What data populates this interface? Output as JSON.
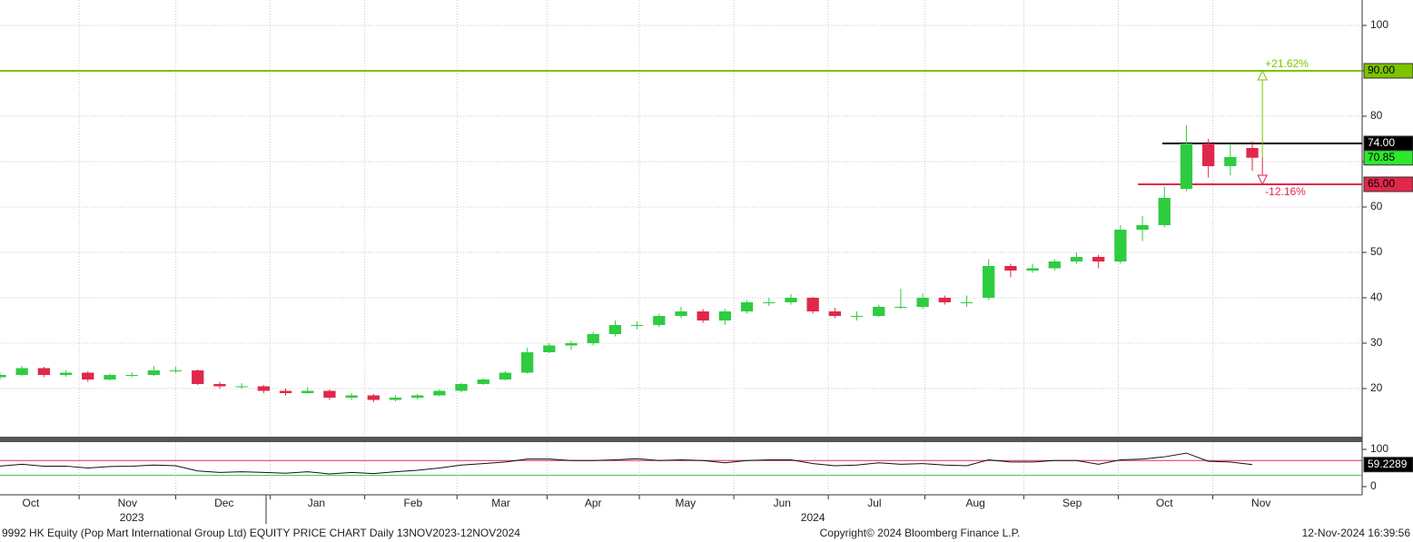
{
  "chart_data": {
    "type": "candlestick",
    "x": [
      0,
      5,
      10,
      15,
      20,
      25,
      30,
      35,
      40,
      45,
      50,
      55,
      60,
      65,
      70,
      75,
      80,
      85,
      90,
      95,
      100,
      105,
      110,
      115,
      120,
      125,
      130,
      135,
      140,
      145,
      150,
      155,
      160,
      165,
      170,
      175,
      180,
      185,
      190,
      195,
      200,
      205,
      210,
      215,
      220,
      225,
      230,
      235,
      240,
      245,
      250,
      255,
      260,
      265,
      270,
      275,
      280,
      285
    ],
    "open": [
      22.5,
      23,
      24.5,
      23,
      23.5,
      22,
      23,
      23,
      24,
      24,
      21,
      20.5,
      20.5,
      19.5,
      19,
      19.5,
      18,
      18.5,
      17.5,
      18,
      18.5,
      19.5,
      21,
      22,
      23.5,
      28,
      29.5,
      30,
      32,
      34,
      34,
      36,
      37,
      35,
      37,
      39,
      39,
      40,
      37,
      36,
      36,
      38,
      38,
      40,
      39,
      40,
      47,
      46,
      46.5,
      48,
      49,
      48,
      55,
      56,
      64,
      74,
      69,
      73
    ],
    "high": [
      23.5,
      25,
      24.8,
      24,
      23.8,
      23.3,
      23.6,
      25,
      24.8,
      24.2,
      21.5,
      21.2,
      20.8,
      20,
      20.3,
      19.8,
      19,
      18.8,
      18.5,
      18.8,
      19.8,
      21.3,
      22.3,
      23.8,
      29,
      30,
      30.5,
      32.5,
      35,
      34.8,
      36.5,
      38,
      37.5,
      37.5,
      39.5,
      40,
      40.8,
      40.2,
      37.8,
      37,
      38.5,
      42,
      41,
      40.5,
      40.5,
      48.5,
      47.5,
      47.5,
      48.5,
      50,
      49.5,
      56,
      58,
      64.5,
      78,
      75,
      74,
      74.5
    ],
    "low": [
      22,
      22.8,
      22.5,
      22.6,
      21.5,
      21.8,
      22.5,
      22.8,
      23.5,
      20.8,
      20,
      20,
      19,
      18.5,
      18.8,
      17.5,
      17.5,
      17,
      17.2,
      17.6,
      18.3,
      19.2,
      20.8,
      21.8,
      23.3,
      27.8,
      28.5,
      29.5,
      31.5,
      33,
      33.5,
      35.5,
      34.5,
      34,
      36.5,
      38.2,
      38.5,
      36.5,
      35.5,
      35,
      35.8,
      37.5,
      37.5,
      38.5,
      38,
      39.5,
      44.5,
      45.5,
      46,
      47.5,
      46.5,
      47.5,
      52.5,
      55.5,
      63.5,
      66.5,
      67,
      68
    ],
    "close": [
      23,
      24.5,
      23,
      23.5,
      22,
      23,
      23,
      24,
      24,
      21,
      20.5,
      20.5,
      19.5,
      19,
      19.5,
      18,
      18.5,
      17.5,
      18,
      18.5,
      19.5,
      21,
      22,
      23.5,
      28,
      29.5,
      30,
      32,
      34,
      34,
      36,
      37,
      35,
      37,
      39,
      39,
      40,
      37,
      36,
      36,
      38,
      38,
      40,
      39,
      39,
      47,
      46,
      46.5,
      48,
      49,
      48,
      55,
      56,
      62,
      74,
      69,
      71,
      70.85
    ],
    "up_color": "#2ecc40",
    "down_color": "#e0284a",
    "xlim": [
      0,
      310
    ],
    "xticks": [
      {
        "value": 7,
        "label": "Oct"
      },
      {
        "value": 29,
        "label": "Nov"
      },
      {
        "value": 51,
        "label": "Dec"
      },
      {
        "value": 72,
        "label": "Jan"
      },
      {
        "value": 94,
        "label": "Feb"
      },
      {
        "value": 114,
        "label": "Mar"
      },
      {
        "value": 135,
        "label": "Apr"
      },
      {
        "value": 156,
        "label": "May"
      },
      {
        "value": 178,
        "label": "Jun"
      },
      {
        "value": 199,
        "label": "Jul"
      },
      {
        "value": 222,
        "label": "Aug"
      },
      {
        "value": 244,
        "label": "Sep"
      },
      {
        "value": 265,
        "label": "Oct"
      },
      {
        "value": 287,
        "label": "Nov"
      }
    ],
    "years": [
      {
        "value": 30,
        "label": "2023"
      },
      {
        "value": 185,
        "label": "2024"
      }
    ],
    "ylim": [
      9.6,
      105.6
    ],
    "yticks": [
      20,
      30,
      40,
      50,
      60,
      70,
      80,
      90,
      100
    ],
    "grid": true,
    "hlines": [
      {
        "value": 90,
        "label": "90.00",
        "color": "#7dc300",
        "from": 0
      },
      {
        "value": 74,
        "label": "74.00",
        "color": "#000000",
        "from": 264.5
      },
      {
        "value": 65,
        "label": "65.00",
        "color": "#e0284a",
        "from": 259
      }
    ],
    "last_price": {
      "value": 70.85,
      "label": "70.85",
      "color": "#2ee82e"
    },
    "arrows": [
      {
        "x": 287.3,
        "from": 70.85,
        "to": 90,
        "label": "+21.62%",
        "color": "#7dc300"
      },
      {
        "x": 287.3,
        "from": 70.85,
        "to": 65,
        "label": "-12.16%",
        "color": "#e0284a"
      }
    ],
    "rsi": {
      "values": [
        55,
        60,
        55,
        55,
        50,
        54,
        55,
        58,
        56,
        42,
        38,
        40,
        38,
        36,
        40,
        34,
        38,
        35,
        40,
        44,
        50,
        58,
        62,
        66,
        74,
        74,
        70,
        70,
        72,
        75,
        70,
        72,
        70,
        64,
        70,
        72,
        72,
        62,
        56,
        58,
        64,
        60,
        62,
        58,
        56,
        72,
        66,
        66,
        70,
        70,
        60,
        72,
        74,
        80,
        90,
        68,
        66,
        59.2289
      ],
      "ylim": [
        -22,
        119.5
      ],
      "yticks": [
        0,
        100
      ],
      "upper": 70,
      "lower": 30,
      "upper_color": "#e0284a",
      "lower_color": "#2ecc40",
      "last": {
        "value": 59.2289,
        "label": "59.2289"
      }
    },
    "footer_left": "9992 HK Equity (Pop Mart International Group Ltd) EQUITY PRICE CHART  Daily 13NOV2023-12NOV2024",
    "footer_center": "Copyright© 2024 Bloomberg Finance L.P.",
    "footer_right": "12-Nov-2024 16:39:56"
  }
}
